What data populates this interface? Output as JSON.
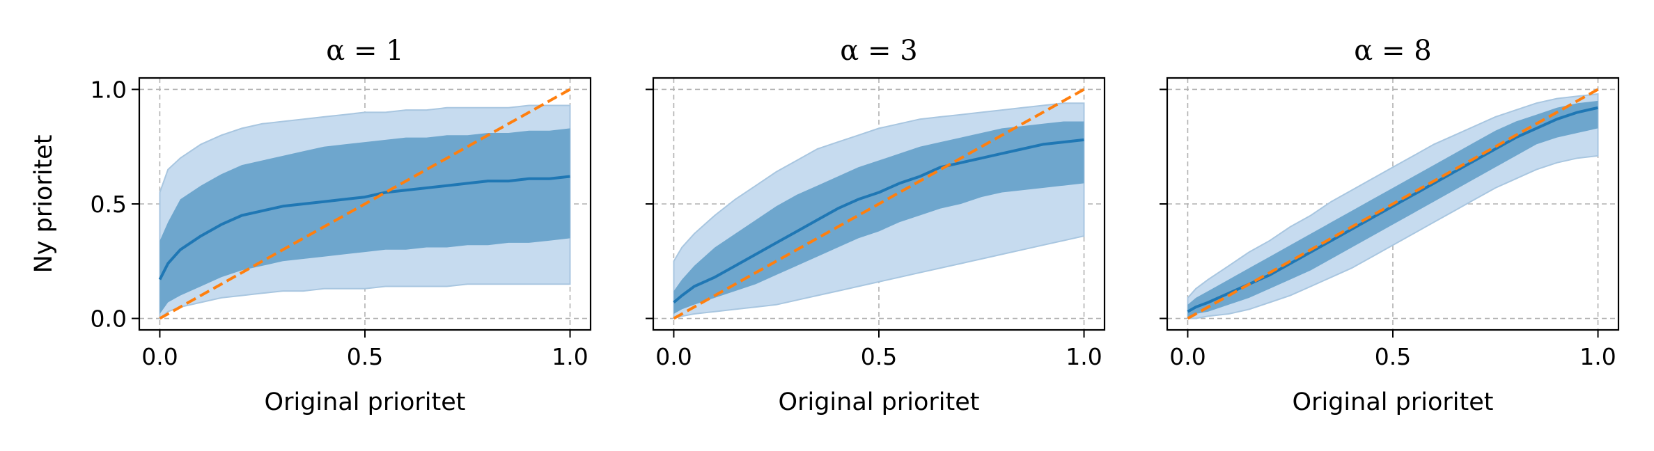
{
  "colors": {
    "median_line": "#1f77b4",
    "band_outer": "#c6dbef",
    "band_outer_edge": "#a8c6e0",
    "band_inner": "#6ea6cd",
    "identity_line": "#ff7f0e",
    "grid": "#b0b0b0"
  },
  "chart_data": [
    {
      "type": "line",
      "title": "α = 1",
      "xlabel": "Original prioritet",
      "ylabel": "Ny prioritet",
      "xlim": [
        -0.05,
        1.05
      ],
      "ylim": [
        -0.05,
        1.05
      ],
      "xticks": [
        "0.0",
        "0.5",
        "1.0"
      ],
      "yticks": [
        "0.0",
        "0.5",
        "1.0"
      ],
      "grid": true,
      "x": [
        0.0,
        0.02,
        0.05,
        0.1,
        0.15,
        0.2,
        0.25,
        0.3,
        0.35,
        0.4,
        0.45,
        0.5,
        0.55,
        0.6,
        0.65,
        0.7,
        0.75,
        0.8,
        0.85,
        0.9,
        0.95,
        1.0
      ],
      "series": [
        {
          "role": "median",
          "values": [
            0.17,
            0.24,
            0.3,
            0.36,
            0.41,
            0.45,
            0.47,
            0.49,
            0.5,
            0.51,
            0.52,
            0.53,
            0.55,
            0.56,
            0.57,
            0.58,
            0.59,
            0.6,
            0.6,
            0.61,
            0.61,
            0.62
          ]
        },
        {
          "role": "inner_band",
          "lower": [
            0.02,
            0.07,
            0.1,
            0.14,
            0.18,
            0.21,
            0.23,
            0.25,
            0.26,
            0.27,
            0.28,
            0.29,
            0.3,
            0.3,
            0.31,
            0.31,
            0.32,
            0.32,
            0.33,
            0.33,
            0.34,
            0.35
          ],
          "upper": [
            0.34,
            0.42,
            0.52,
            0.58,
            0.63,
            0.67,
            0.69,
            0.71,
            0.73,
            0.75,
            0.76,
            0.77,
            0.78,
            0.79,
            0.79,
            0.8,
            0.8,
            0.81,
            0.81,
            0.82,
            0.82,
            0.83
          ]
        },
        {
          "role": "outer_band",
          "lower": [
            0.0,
            0.03,
            0.05,
            0.07,
            0.09,
            0.1,
            0.11,
            0.12,
            0.12,
            0.13,
            0.13,
            0.13,
            0.14,
            0.14,
            0.14,
            0.14,
            0.15,
            0.15,
            0.15,
            0.15,
            0.15,
            0.15
          ],
          "upper": [
            0.55,
            0.65,
            0.7,
            0.76,
            0.8,
            0.83,
            0.85,
            0.86,
            0.87,
            0.88,
            0.89,
            0.9,
            0.9,
            0.91,
            0.91,
            0.92,
            0.92,
            0.92,
            0.92,
            0.93,
            0.93,
            0.93
          ]
        },
        {
          "role": "identity",
          "values": [
            0.0,
            0.02,
            0.05,
            0.1,
            0.15,
            0.2,
            0.25,
            0.3,
            0.35,
            0.4,
            0.45,
            0.5,
            0.55,
            0.6,
            0.65,
            0.7,
            0.75,
            0.8,
            0.85,
            0.9,
            0.95,
            1.0
          ]
        }
      ]
    },
    {
      "type": "line",
      "title": "α = 3",
      "xlabel": "Original prioritet",
      "ylabel": "",
      "xlim": [
        -0.05,
        1.05
      ],
      "ylim": [
        -0.05,
        1.05
      ],
      "xticks": [
        "0.0",
        "0.5",
        "1.0"
      ],
      "yticks": [
        "",
        "",
        ""
      ],
      "grid": true,
      "x": [
        0.0,
        0.02,
        0.05,
        0.1,
        0.15,
        0.2,
        0.25,
        0.3,
        0.35,
        0.4,
        0.45,
        0.5,
        0.55,
        0.6,
        0.65,
        0.7,
        0.75,
        0.8,
        0.85,
        0.9,
        0.95,
        1.0
      ],
      "series": [
        {
          "role": "median",
          "values": [
            0.07,
            0.1,
            0.14,
            0.18,
            0.23,
            0.28,
            0.33,
            0.38,
            0.43,
            0.48,
            0.52,
            0.55,
            0.59,
            0.62,
            0.66,
            0.68,
            0.7,
            0.72,
            0.74,
            0.76,
            0.77,
            0.78
          ]
        },
        {
          "role": "inner_band",
          "lower": [
            0.02,
            0.04,
            0.06,
            0.09,
            0.12,
            0.15,
            0.19,
            0.23,
            0.27,
            0.31,
            0.35,
            0.38,
            0.42,
            0.45,
            0.48,
            0.5,
            0.53,
            0.55,
            0.56,
            0.57,
            0.58,
            0.59
          ],
          "upper": [
            0.12,
            0.17,
            0.23,
            0.31,
            0.37,
            0.43,
            0.49,
            0.54,
            0.58,
            0.62,
            0.66,
            0.69,
            0.72,
            0.75,
            0.77,
            0.79,
            0.81,
            0.83,
            0.84,
            0.85,
            0.86,
            0.86
          ]
        },
        {
          "role": "outer_band",
          "lower": [
            0.0,
            0.01,
            0.02,
            0.03,
            0.04,
            0.05,
            0.06,
            0.08,
            0.1,
            0.12,
            0.14,
            0.16,
            0.18,
            0.2,
            0.22,
            0.24,
            0.26,
            0.28,
            0.3,
            0.32,
            0.34,
            0.36
          ],
          "upper": [
            0.25,
            0.31,
            0.37,
            0.45,
            0.52,
            0.58,
            0.64,
            0.69,
            0.74,
            0.77,
            0.8,
            0.83,
            0.85,
            0.87,
            0.88,
            0.89,
            0.9,
            0.91,
            0.92,
            0.93,
            0.94,
            0.94
          ]
        },
        {
          "role": "identity",
          "values": [
            0.0,
            0.02,
            0.05,
            0.1,
            0.15,
            0.2,
            0.25,
            0.3,
            0.35,
            0.4,
            0.45,
            0.5,
            0.55,
            0.6,
            0.65,
            0.7,
            0.75,
            0.8,
            0.85,
            0.9,
            0.95,
            1.0
          ]
        }
      ]
    },
    {
      "type": "line",
      "title": "α = 8",
      "xlabel": "Original prioritet",
      "ylabel": "",
      "xlim": [
        -0.05,
        1.05
      ],
      "ylim": [
        -0.05,
        1.05
      ],
      "xticks": [
        "0.0",
        "0.5",
        "1.0"
      ],
      "yticks": [
        "",
        "",
        ""
      ],
      "grid": true,
      "x": [
        0.0,
        0.02,
        0.05,
        0.1,
        0.15,
        0.2,
        0.25,
        0.3,
        0.35,
        0.4,
        0.45,
        0.5,
        0.55,
        0.6,
        0.65,
        0.7,
        0.75,
        0.8,
        0.85,
        0.9,
        0.95,
        1.0
      ],
      "series": [
        {
          "role": "median",
          "values": [
            0.03,
            0.05,
            0.07,
            0.11,
            0.15,
            0.19,
            0.24,
            0.29,
            0.34,
            0.39,
            0.44,
            0.49,
            0.54,
            0.59,
            0.64,
            0.69,
            0.74,
            0.79,
            0.83,
            0.87,
            0.9,
            0.92
          ]
        },
        {
          "role": "inner_band",
          "lower": [
            0.0,
            0.02,
            0.03,
            0.06,
            0.09,
            0.13,
            0.17,
            0.21,
            0.26,
            0.31,
            0.36,
            0.41,
            0.46,
            0.51,
            0.56,
            0.61,
            0.66,
            0.71,
            0.76,
            0.79,
            0.81,
            0.83
          ],
          "upper": [
            0.06,
            0.09,
            0.12,
            0.17,
            0.22,
            0.27,
            0.32,
            0.37,
            0.42,
            0.47,
            0.52,
            0.57,
            0.62,
            0.67,
            0.72,
            0.77,
            0.82,
            0.86,
            0.89,
            0.92,
            0.94,
            0.95
          ]
        },
        {
          "role": "outer_band",
          "lower": [
            0.0,
            0.0,
            0.01,
            0.02,
            0.04,
            0.07,
            0.1,
            0.14,
            0.18,
            0.22,
            0.27,
            0.32,
            0.37,
            0.42,
            0.47,
            0.52,
            0.57,
            0.61,
            0.65,
            0.68,
            0.7,
            0.71
          ],
          "upper": [
            0.09,
            0.13,
            0.17,
            0.23,
            0.29,
            0.34,
            0.4,
            0.45,
            0.51,
            0.56,
            0.61,
            0.66,
            0.71,
            0.76,
            0.8,
            0.84,
            0.88,
            0.91,
            0.94,
            0.96,
            0.97,
            0.98
          ]
        },
        {
          "role": "identity",
          "values": [
            0.0,
            0.02,
            0.05,
            0.1,
            0.15,
            0.2,
            0.25,
            0.3,
            0.35,
            0.4,
            0.45,
            0.5,
            0.55,
            0.6,
            0.65,
            0.7,
            0.75,
            0.8,
            0.85,
            0.9,
            0.95,
            1.0
          ]
        }
      ]
    }
  ]
}
